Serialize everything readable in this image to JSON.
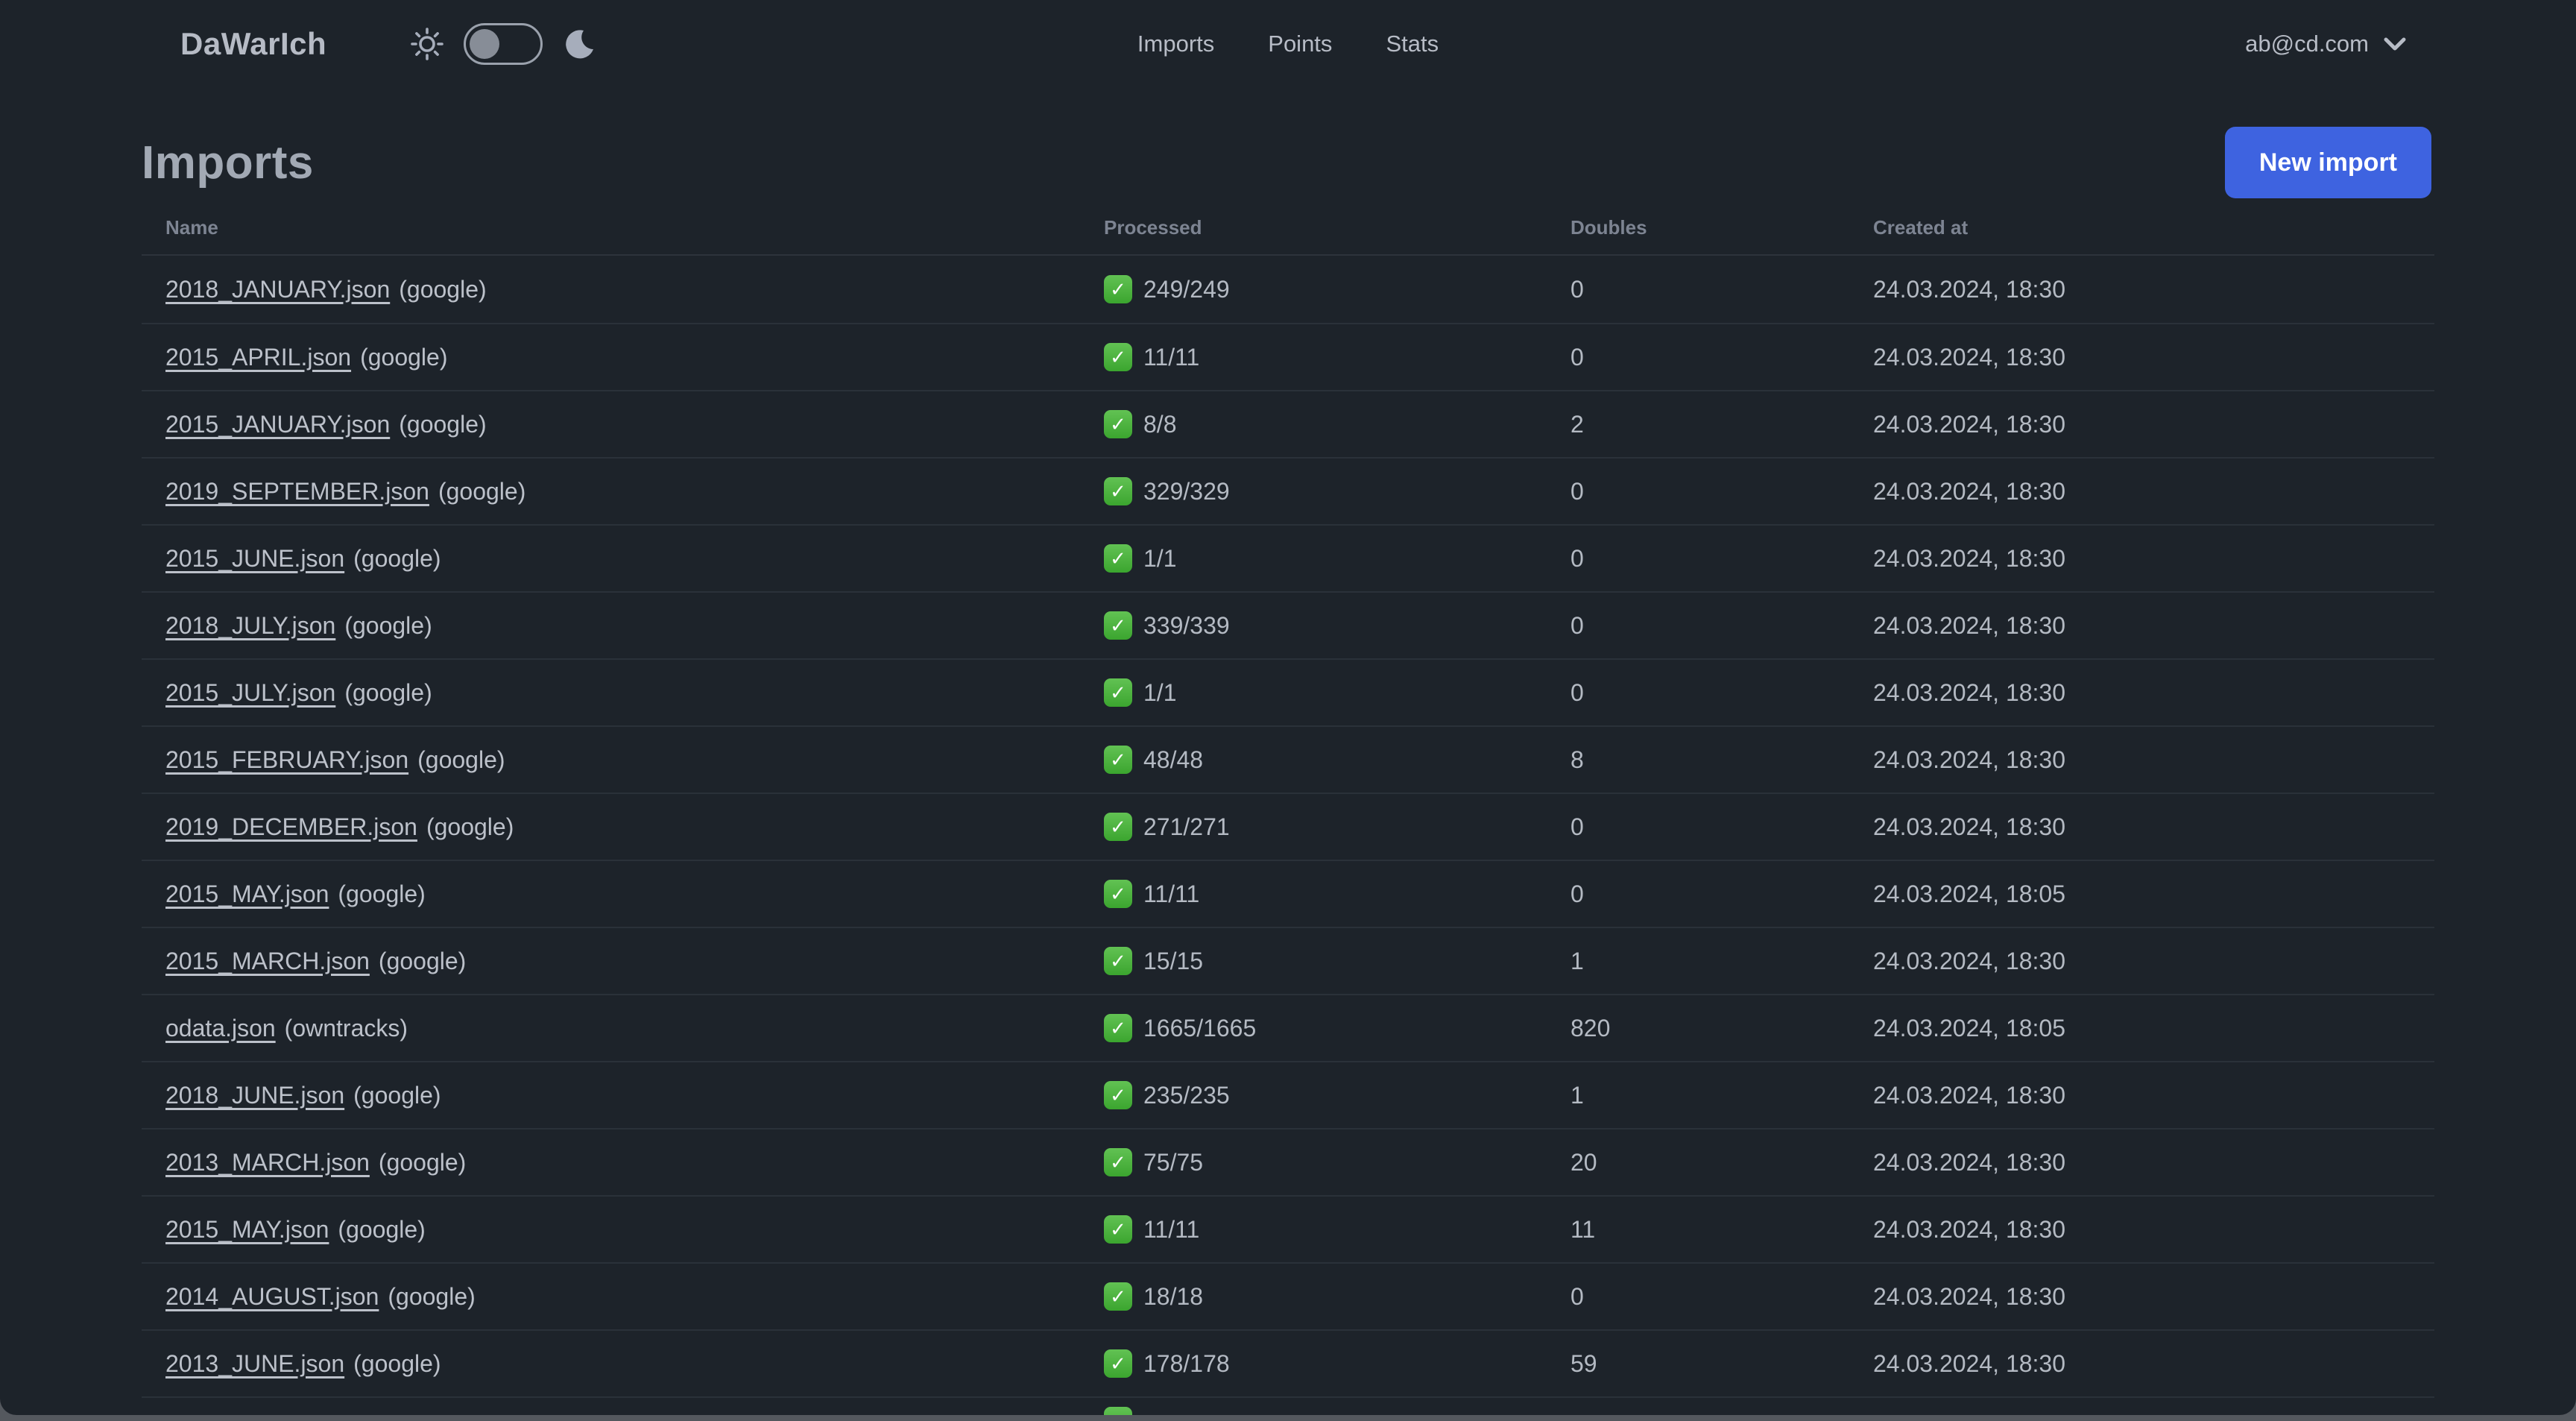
{
  "brand": "DaWarIch",
  "nav": {
    "items": [
      "Imports",
      "Points",
      "Stats"
    ]
  },
  "theme_toggle": {
    "state": "light-off",
    "left_icon": "sun",
    "right_icon": "moon"
  },
  "account": {
    "email": "ab@cd.com",
    "icon": "chevron-down"
  },
  "page": {
    "title": "Imports",
    "new_import_label": "New import"
  },
  "table": {
    "columns": [
      "Name",
      "Processed",
      "Doubles",
      "Created at"
    ],
    "status_icon": "check",
    "rows": [
      {
        "file": "2018_JANUARY.json",
        "source": "google",
        "processed": "249/249",
        "doubles": "0",
        "created_at": "24.03.2024, 18:30"
      },
      {
        "file": "2015_APRIL.json",
        "source": "google",
        "processed": "11/11",
        "doubles": "0",
        "created_at": "24.03.2024, 18:30"
      },
      {
        "file": "2015_JANUARY.json",
        "source": "google",
        "processed": "8/8",
        "doubles": "2",
        "created_at": "24.03.2024, 18:30"
      },
      {
        "file": "2019_SEPTEMBER.json",
        "source": "google",
        "processed": "329/329",
        "doubles": "0",
        "created_at": "24.03.2024, 18:30"
      },
      {
        "file": "2015_JUNE.json",
        "source": "google",
        "processed": "1/1",
        "doubles": "0",
        "created_at": "24.03.2024, 18:30"
      },
      {
        "file": "2018_JULY.json",
        "source": "google",
        "processed": "339/339",
        "doubles": "0",
        "created_at": "24.03.2024, 18:30"
      },
      {
        "file": "2015_JULY.json",
        "source": "google",
        "processed": "1/1",
        "doubles": "0",
        "created_at": "24.03.2024, 18:30"
      },
      {
        "file": "2015_FEBRUARY.json",
        "source": "google",
        "processed": "48/48",
        "doubles": "8",
        "created_at": "24.03.2024, 18:30"
      },
      {
        "file": "2019_DECEMBER.json",
        "source": "google",
        "processed": "271/271",
        "doubles": "0",
        "created_at": "24.03.2024, 18:30"
      },
      {
        "file": "2015_MAY.json",
        "source": "google",
        "processed": "11/11",
        "doubles": "0",
        "created_at": "24.03.2024, 18:05"
      },
      {
        "file": "2015_MARCH.json",
        "source": "google",
        "processed": "15/15",
        "doubles": "1",
        "created_at": "24.03.2024, 18:30"
      },
      {
        "file": "odata.json",
        "source": "owntracks",
        "processed": "1665/1665",
        "doubles": "820",
        "created_at": "24.03.2024, 18:05"
      },
      {
        "file": "2018_JUNE.json",
        "source": "google",
        "processed": "235/235",
        "doubles": "1",
        "created_at": "24.03.2024, 18:30"
      },
      {
        "file": "2013_MARCH.json",
        "source": "google",
        "processed": "75/75",
        "doubles": "20",
        "created_at": "24.03.2024, 18:30"
      },
      {
        "file": "2015_MAY.json",
        "source": "google",
        "processed": "11/11",
        "doubles": "11",
        "created_at": "24.03.2024, 18:30"
      },
      {
        "file": "2014_AUGUST.json",
        "source": "google",
        "processed": "18/18",
        "doubles": "0",
        "created_at": "24.03.2024, 18:30"
      },
      {
        "file": "2013_JUNE.json",
        "source": "google",
        "processed": "178/178",
        "doubles": "59",
        "created_at": "24.03.2024, 18:30"
      }
    ],
    "partial_row": {
      "visible": true
    }
  },
  "colors": {
    "background": "#1d232a",
    "accent": "#3e63e0",
    "success": "#3ba52f",
    "text": "#b4bac3",
    "muted": "#7d8492"
  }
}
